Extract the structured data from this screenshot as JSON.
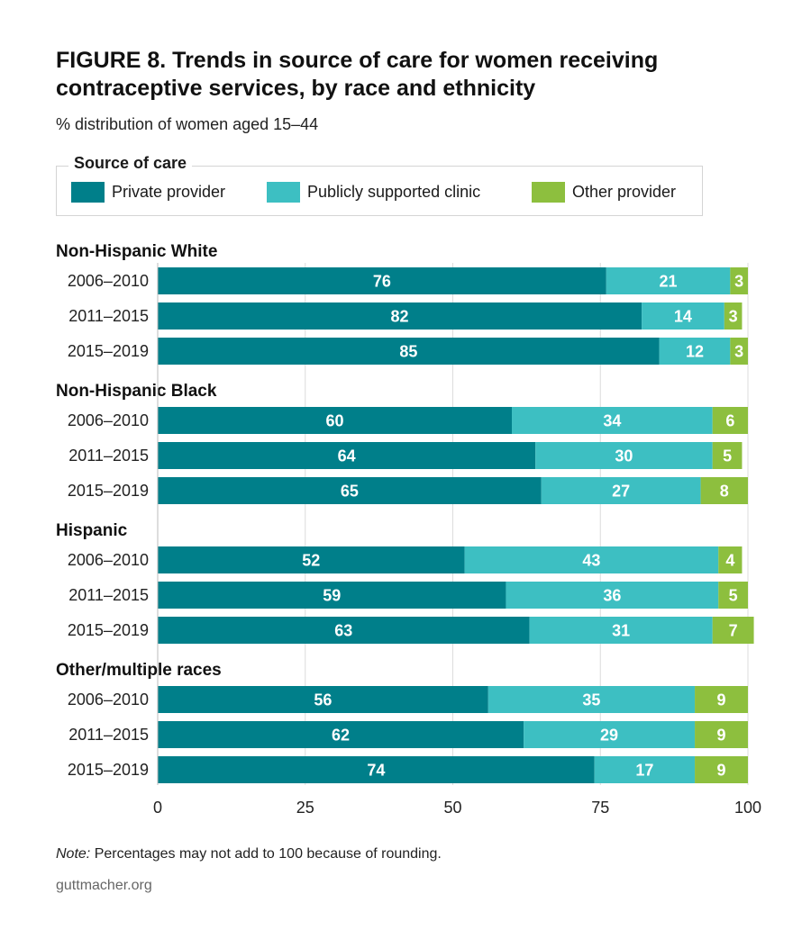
{
  "header": {
    "title": "FIGURE 8. Trends in source of care for women receiving contraceptive services, by race and ethnicity",
    "subtitle": "% distribution of women aged 15–44"
  },
  "legend": {
    "title": "Source of care",
    "items": [
      {
        "label": "Private provider",
        "color": "#007f8a"
      },
      {
        "label": "Publicly supported clinic",
        "color": "#3dbfc2"
      },
      {
        "label": "Other provider",
        "color": "#8dbf3e"
      }
    ]
  },
  "footer": {
    "note_prefix": "Note:",
    "note_text": " Percentages may not add to 100 because of rounding.",
    "source": "guttmacher.org"
  },
  "chart_data": {
    "type": "bar",
    "orientation": "horizontal",
    "stacked": true,
    "xlim": [
      0,
      100
    ],
    "xticks": [
      0,
      25,
      50,
      75,
      100
    ],
    "grid": true,
    "series": [
      {
        "name": "Private provider",
        "color": "#007f8a"
      },
      {
        "name": "Publicly supported clinic",
        "color": "#3dbfc2"
      },
      {
        "name": "Other provider",
        "color": "#8dbf3e"
      }
    ],
    "groups": [
      {
        "name": "Non-Hispanic White",
        "rows": [
          {
            "label": "2006–2010",
            "values": [
              76,
              21,
              3
            ]
          },
          {
            "label": "2011–2015",
            "values": [
              82,
              14,
              3
            ]
          },
          {
            "label": "2015–2019",
            "values": [
              85,
              12,
              3
            ]
          }
        ]
      },
      {
        "name": "Non-Hispanic Black",
        "rows": [
          {
            "label": "2006–2010",
            "values": [
              60,
              34,
              6
            ]
          },
          {
            "label": "2011–2015",
            "values": [
              64,
              30,
              5
            ]
          },
          {
            "label": "2015–2019",
            "values": [
              65,
              27,
              8
            ]
          }
        ]
      },
      {
        "name": "Hispanic",
        "rows": [
          {
            "label": "2006–2010",
            "values": [
              52,
              43,
              4
            ]
          },
          {
            "label": "2011–2015",
            "values": [
              59,
              36,
              5
            ]
          },
          {
            "label": "2015–2019",
            "values": [
              63,
              31,
              7
            ]
          }
        ]
      },
      {
        "name": "Other/multiple races",
        "rows": [
          {
            "label": "2006–2010",
            "values": [
              56,
              35,
              9
            ]
          },
          {
            "label": "2011–2015",
            "values": [
              62,
              29,
              9
            ]
          },
          {
            "label": "2015–2019",
            "values": [
              74,
              17,
              9
            ]
          }
        ]
      }
    ]
  }
}
